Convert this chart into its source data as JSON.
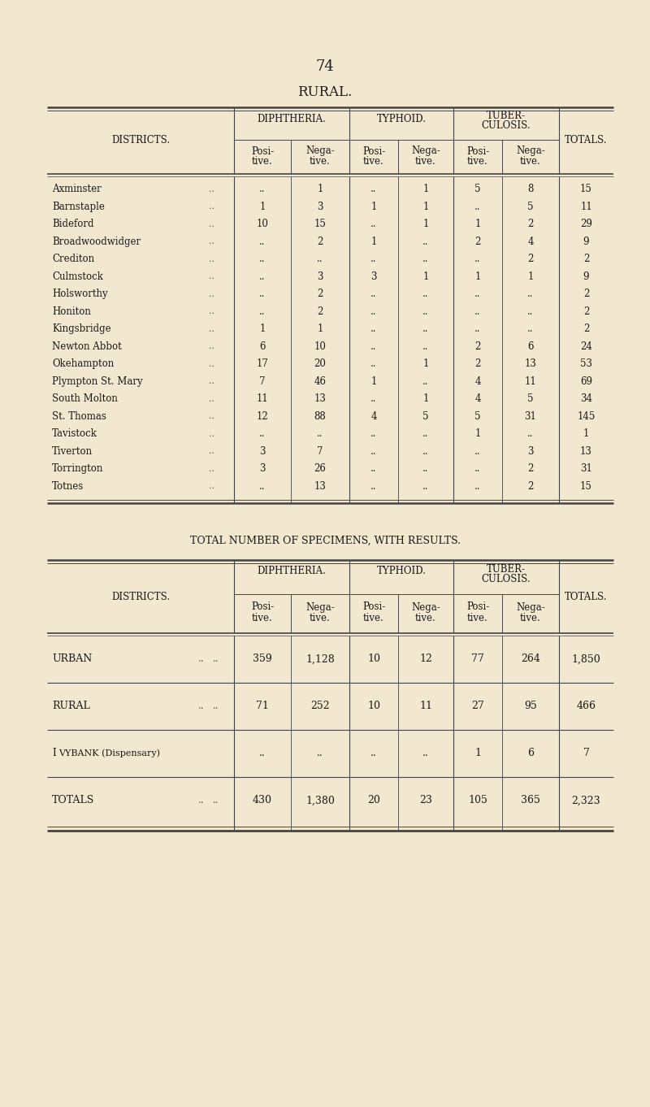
{
  "page_number": "74",
  "title1": "RURAL.",
  "bg_color": "#f2e8d0",
  "table1_rows": [
    [
      "Axminster",
      "..",
      "1",
      "..",
      "1",
      "5",
      "8",
      "15"
    ],
    [
      "Barnstaple",
      "1",
      "3",
      "1",
      "1",
      "..",
      "5",
      "11"
    ],
    [
      "Bideford",
      "10",
      "15",
      "..",
      "1",
      "1",
      "2",
      "29"
    ],
    [
      "Broadwoodwidger",
      "..",
      "2",
      "1",
      "..",
      "2",
      "4",
      "9"
    ],
    [
      "Crediton",
      "..",
      "..",
      "..",
      "..",
      "..",
      "2",
      "2"
    ],
    [
      "Culmstock",
      "..",
      "3",
      "3",
      "1",
      "1",
      "1",
      "9"
    ],
    [
      "Holsworthy",
      "..",
      "2",
      "..",
      "..",
      "..",
      "..",
      "2"
    ],
    [
      "Honiton",
      "..",
      "2",
      "..",
      "..",
      "..",
      "..",
      "2"
    ],
    [
      "Kingsbridge",
      "1",
      "1",
      "..",
      "..",
      "..",
      "..",
      "2"
    ],
    [
      "Newton Abbot",
      "6",
      "10",
      "..",
      "..",
      "2",
      "6",
      "24"
    ],
    [
      "Okehampton",
      "17",
      "20",
      "..",
      "1",
      "2",
      "13",
      "53"
    ],
    [
      "Plympton St. Mary",
      "7",
      "46",
      "1",
      "..",
      "4",
      "11",
      "69"
    ],
    [
      "South Molton",
      "11",
      "13",
      "..",
      "1",
      "4",
      "5",
      "34"
    ],
    [
      "St. Thomas",
      "12",
      "88",
      "4",
      "5",
      "5",
      "31",
      "145"
    ],
    [
      "Tavistock",
      "..",
      "..",
      "..",
      "..",
      "1",
      "..",
      "1"
    ],
    [
      "Tiverton",
      "3",
      "7",
      "..",
      "..",
      "..",
      "3",
      "13"
    ],
    [
      "Torrington",
      "3",
      "26",
      "..",
      "..",
      "..",
      "2",
      "31"
    ],
    [
      "Totnes",
      "..",
      "13",
      "..",
      "..",
      "..",
      "2",
      "15"
    ]
  ],
  "title2": "TOTAL NUMBER OF SPECIMENS, WITH RESULTS.",
  "table2_rows": [
    [
      "URBAN",
      "359",
      "1,128",
      "10",
      "12",
      "77",
      "264",
      "1,850"
    ],
    [
      "RURAL",
      "71",
      "252",
      "10",
      "11",
      "27",
      "95",
      "466"
    ],
    [
      "IVYBANK (Dispensary)",
      "...",
      "...",
      "...",
      "...",
      "1",
      "6",
      "7"
    ],
    [
      "TOTALS",
      "430",
      "1,380",
      "20",
      "23",
      "105",
      "365",
      "2,323"
    ]
  ]
}
